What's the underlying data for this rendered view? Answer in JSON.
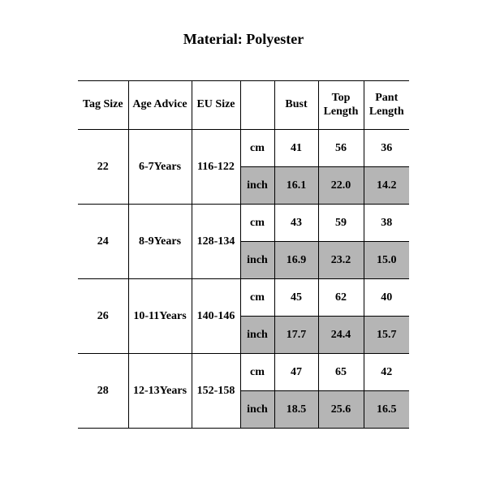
{
  "title": "Material: Polyester",
  "columns": {
    "tag": "Tag Size",
    "age": "Age Advice",
    "eu": "EU Size",
    "unit": "",
    "bust": "Bust",
    "top": "Top Length",
    "pant": "Pant Length"
  },
  "units": {
    "cm": "cm",
    "inch": "inch"
  },
  "rows": [
    {
      "tag": "22",
      "age": "6-7Years",
      "eu": "116-122",
      "cm": {
        "bust": "41",
        "top": "56",
        "pant": "36"
      },
      "inch": {
        "bust": "16.1",
        "top": "22.0",
        "pant": "14.2"
      }
    },
    {
      "tag": "24",
      "age": "8-9Years",
      "eu": "128-134",
      "cm": {
        "bust": "43",
        "top": "59",
        "pant": "38"
      },
      "inch": {
        "bust": "16.9",
        "top": "23.2",
        "pant": "15.0"
      }
    },
    {
      "tag": "26",
      "age": "10-11Years",
      "eu": "140-146",
      "cm": {
        "bust": "45",
        "top": "62",
        "pant": "40"
      },
      "inch": {
        "bust": "17.7",
        "top": "24.4",
        "pant": "15.7"
      }
    },
    {
      "tag": "28",
      "age": "12-13Years",
      "eu": "152-158",
      "cm": {
        "bust": "47",
        "top": "65",
        "pant": "42"
      },
      "inch": {
        "bust": "18.5",
        "top": "25.6",
        "pant": "16.5"
      }
    }
  ],
  "style": {
    "background": "#ffffff",
    "border_color": "#000000",
    "shade_color": "#b5b5b5",
    "title_fontsize": 18,
    "cell_fontsize": 14,
    "font_family": "Times New Roman"
  }
}
